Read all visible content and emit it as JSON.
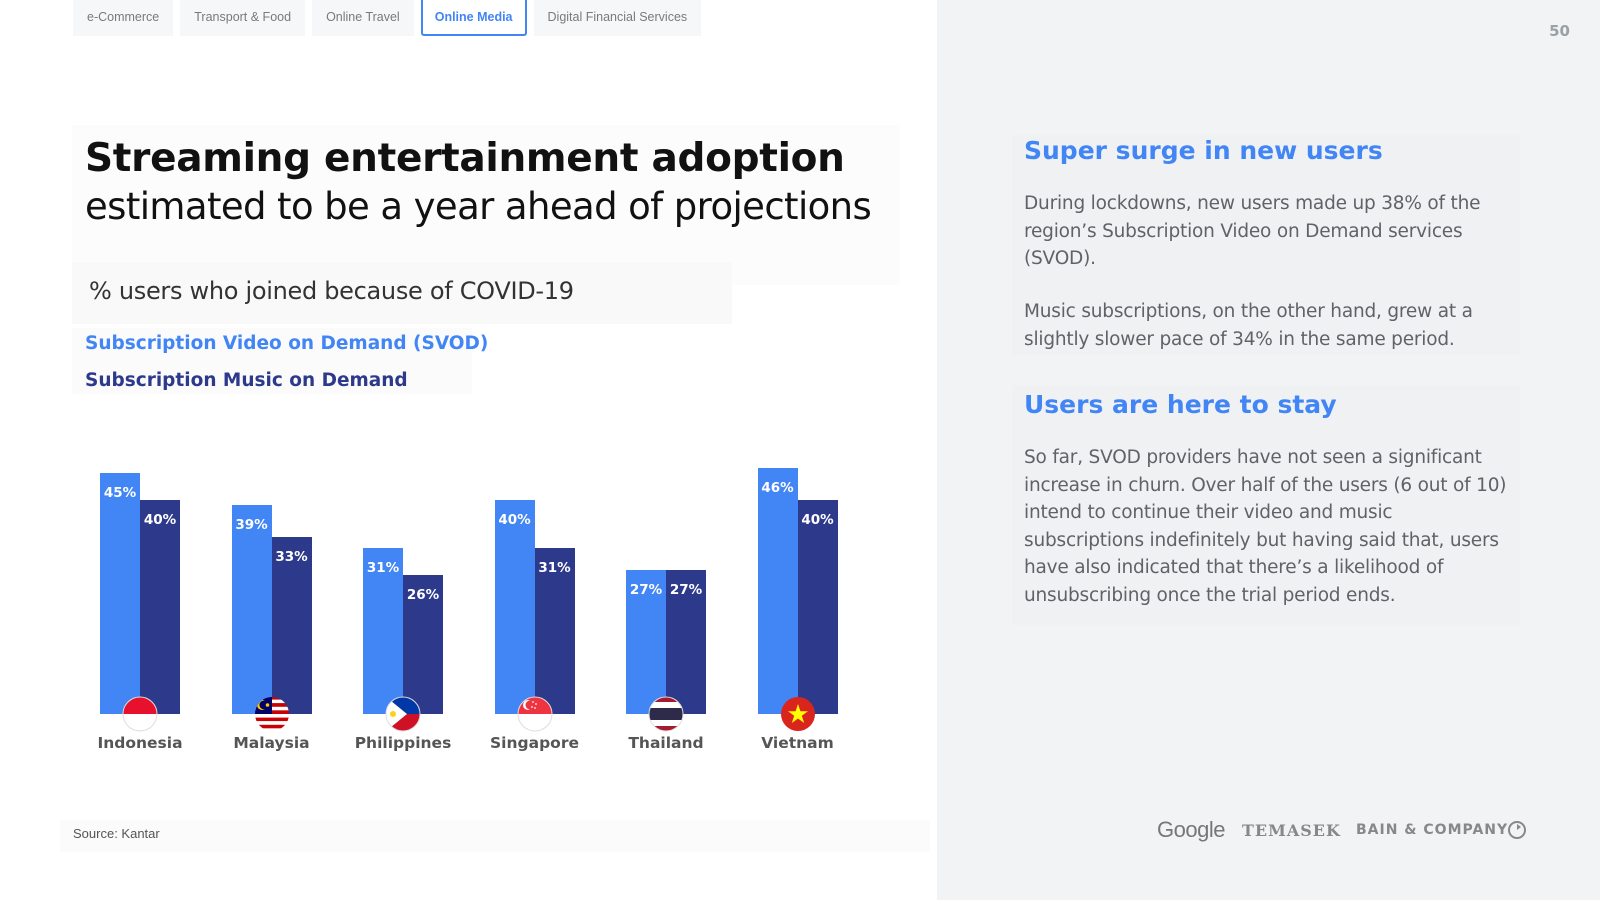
{
  "nav": {
    "tabs": [
      {
        "label": "e-Commerce",
        "active": false
      },
      {
        "label": "Transport & Food",
        "active": false
      },
      {
        "label": "Online Travel",
        "active": false
      },
      {
        "label": "Online Media",
        "active": true
      },
      {
        "label": "Digital Financial Services",
        "active": false
      }
    ]
  },
  "page_number": "50",
  "title": {
    "line1": "Streaming entertainment adoption",
    "line2": "estimated to be a year ahead of projections"
  },
  "chart_subtitle": "% users who joined because of COVID-19",
  "source": "Source: Kantar",
  "chart_data": {
    "type": "bar",
    "title": "% users who joined because of COVID-19",
    "categories": [
      "Indonesia",
      "Malaysia",
      "Philippines",
      "Singapore",
      "Thailand",
      "Vietnam"
    ],
    "series": [
      {
        "name": "Subscription Video on Demand (SVOD)",
        "values": [
          45,
          39,
          31,
          40,
          27,
          46
        ],
        "color": "#4285f4"
      },
      {
        "name": "Subscription Music on Demand",
        "values": [
          40,
          33,
          26,
          31,
          27,
          40
        ],
        "color": "#2d3a8c"
      }
    ],
    "value_format": "percent",
    "legend_position": "top-left",
    "grid": false,
    "y_axis_visible": false,
    "category_flags": [
      "indonesia-flag-icon",
      "malaysia-flag-icon",
      "philippines-flag-icon",
      "singapore-flag-icon",
      "thailand-flag-icon",
      "vietnam-flag-icon"
    ]
  },
  "sidebar": {
    "sections": [
      {
        "heading": "Super surge in new users",
        "paragraphs": [
          "During lockdowns, new users made up 38% of the region’s Subscription Video on Demand services (SVOD).",
          "Music subscriptions, on the other hand, grew at a slightly slower pace of 34% in the same period."
        ]
      },
      {
        "heading": "Users are here to stay",
        "paragraphs": [
          "So far, SVOD providers have not seen a significant increase in churn. Over half of the users (6 out of 10) intend to continue their video and music subscriptions indefinitely but having said that, users have also indicated that there’s a likelihood of unsubscribing once the trial period ends."
        ]
      }
    ]
  },
  "logos": {
    "google": "Google",
    "temasek": "TEMASEK",
    "bain": "BAIN & COMPANY"
  }
}
